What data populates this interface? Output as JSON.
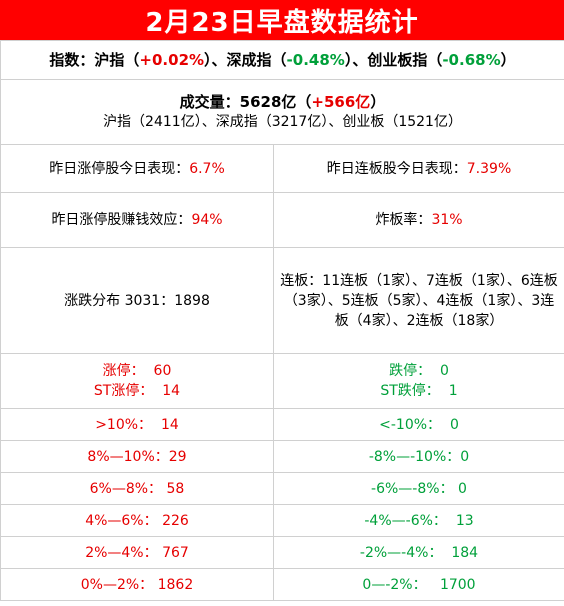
{
  "title": "2月23日早盘数据统计",
  "index": {
    "prefix": "指数：沪指（",
    "sh_val": "+0.02%",
    "sep1": "）、深成指（",
    "sz_val": "-0.48%",
    "sep2": "）、创业板指（",
    "cy_val": "-0.68%",
    "suffix": "）"
  },
  "volume": {
    "label": "成交量：5628亿（",
    "delta": "+566亿",
    "close": "）",
    "detail": "沪指（2411亿）、深成指（3217亿）、创业板（1521亿）"
  },
  "stats": {
    "limit_up_today_label": "昨日涨停股今日表现：",
    "limit_up_today_val": "6.7%",
    "consec_today_label": "昨日连板股今日表现：",
    "consec_today_val": "7.39%",
    "profit_label": "昨日涨停股赚钱效应：",
    "profit_val": "94%",
    "break_label": "炸板率：",
    "break_val": "31%",
    "dist_label": "涨跌分布 3031：1898",
    "consec_detail": "连板：11连板（1家）、7连板（1家）、6连板（3家）、5连板（5家）、4连板（1家）、3连板（4家）、2连板（18家）"
  },
  "limits": {
    "up_label": "涨停：",
    "up_val": "60",
    "st_up_label": "ST涨停：",
    "st_up_val": "14",
    "down_label": "跌停：",
    "down_val": "0",
    "st_down_label": "ST跌停：",
    "st_down_val": "1"
  },
  "ranges": [
    {
      "up_label": ">10%：",
      "up_val": "14",
      "down_label": "<-10%：",
      "down_val": "0"
    },
    {
      "up_label": "8%—10%：",
      "up_val": "29",
      "down_label": "-8%—-10%：",
      "down_val": "0"
    },
    {
      "up_label": "6%—8%：",
      "up_val": "58",
      "down_label": "-6%—-8%：",
      "down_val": "0"
    },
    {
      "up_label": "4%—6%：",
      "up_val": "226",
      "down_label": "-4%—-6%：",
      "down_val": "13"
    },
    {
      "up_label": "2%—4%：",
      "up_val": "767",
      "down_label": "-2%—-4%：",
      "down_val": "184"
    },
    {
      "up_label": "0%—2%：",
      "up_val": "1862",
      "down_label": "0—-2%：",
      "down_val": "1700"
    }
  ],
  "colors": {
    "header_bg": "#ff0000",
    "up": "#e60000",
    "down": "#00a03a"
  }
}
